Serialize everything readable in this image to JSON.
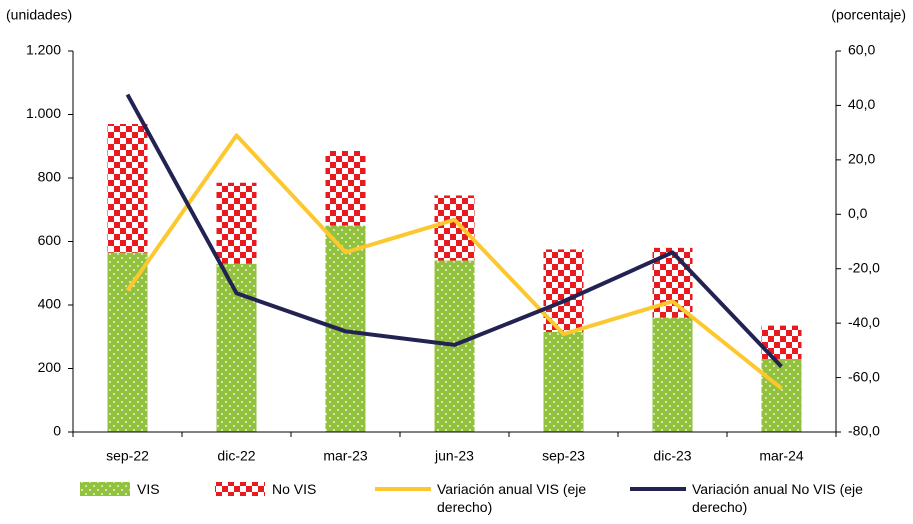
{
  "chart_data": {
    "type": "bar",
    "stacked": true,
    "y_label": "(unidades)",
    "y2_label": "(porcentaje)",
    "categories": [
      "sep-22",
      "dic-22",
      "mar-23",
      "jun-23",
      "sep-23",
      "dic-23",
      "mar-24"
    ],
    "series": [
      {
        "name": "VIS",
        "color": "#92c13e",
        "pattern": "dots",
        "values": [
          565,
          530,
          650,
          540,
          315,
          360,
          230
        ]
      },
      {
        "name": "No VIS",
        "color": "#e8191f",
        "pattern": "checker",
        "values": [
          405,
          255,
          235,
          205,
          260,
          220,
          105
        ]
      },
      {
        "name": "Variación anual VIS (eje derecho)",
        "type": "line",
        "axis": "y2",
        "color": "#fdc82f",
        "values": [
          -28,
          29,
          -14,
          -2,
          -44,
          -32,
          -64
        ]
      },
      {
        "name": "Variación anual No VIS (eje derecho)",
        "type": "line",
        "axis": "y2",
        "color": "#232353",
        "values": [
          44,
          -29,
          -43,
          -48,
          -32,
          -14,
          -56
        ]
      }
    ],
    "ylim": [
      0,
      1200
    ],
    "yticks": [
      0,
      200,
      400,
      600,
      800,
      {
        "value": 1000,
        "label": "1.000"
      },
      {
        "value": 1200,
        "label": "1.200"
      }
    ],
    "y2lim": [
      -80,
      60
    ],
    "y2ticks": [
      {
        "value": -80,
        "label": "-80,0"
      },
      {
        "value": -60,
        "label": "-60,0"
      },
      {
        "value": -40,
        "label": "-40,0"
      },
      {
        "value": -20,
        "label": "-20,0"
      },
      {
        "value": 0,
        "label": "0,0"
      },
      {
        "value": 20,
        "label": "20,0"
      },
      {
        "value": 40,
        "label": "40,0"
      },
      {
        "value": 60,
        "label": "60,0"
      }
    ],
    "grid": false
  }
}
